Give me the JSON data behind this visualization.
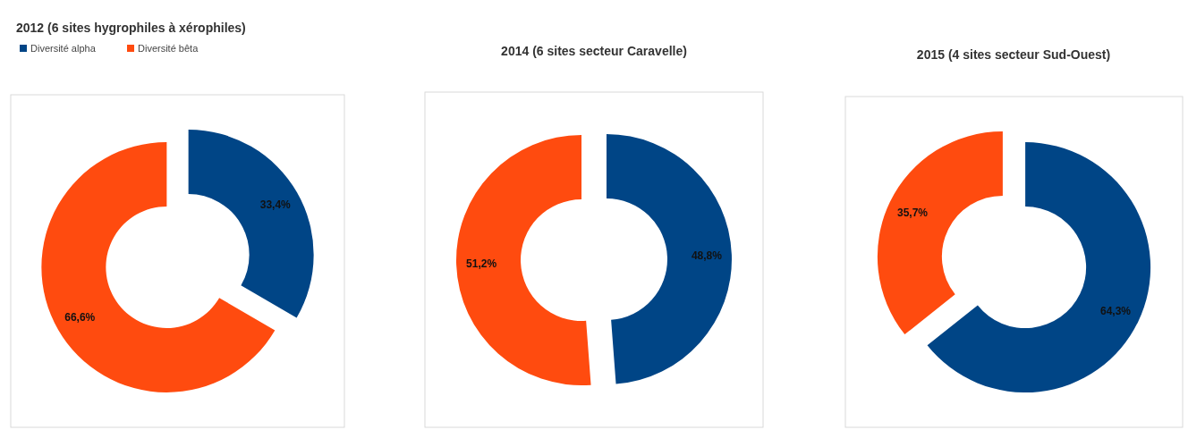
{
  "chart_data": [
    {
      "type": "donut",
      "title": "2012 (6 sites hygrophiles à xérophiles)",
      "categories": [
        "Diversité alpha",
        "Diversité bêta"
      ],
      "values": [
        33.4,
        66.6
      ],
      "value_labels": [
        "33,4%",
        "66,6%"
      ],
      "colors": [
        "#004586",
        "#ff4b0f"
      ],
      "legend": "top left"
    },
    {
      "type": "donut",
      "title": "2014 (6 sites secteur Caravelle)",
      "categories": [
        null,
        null
      ],
      "values": [
        48.8,
        51.2
      ],
      "value_labels": [
        "48,8%",
        "51,2%"
      ],
      "colors": [
        "#004586",
        "#ff4b0f"
      ],
      "legend": false
    },
    {
      "type": "donut",
      "title": "2015 (4 sites secteur Sud-Ouest)",
      "categories": [
        null,
        null
      ],
      "values": [
        64.3,
        35.7
      ],
      "value_labels": [
        "64,3%",
        "35,7%"
      ],
      "colors": [
        "#004586",
        "#ff4b0f"
      ],
      "legend": false
    }
  ]
}
